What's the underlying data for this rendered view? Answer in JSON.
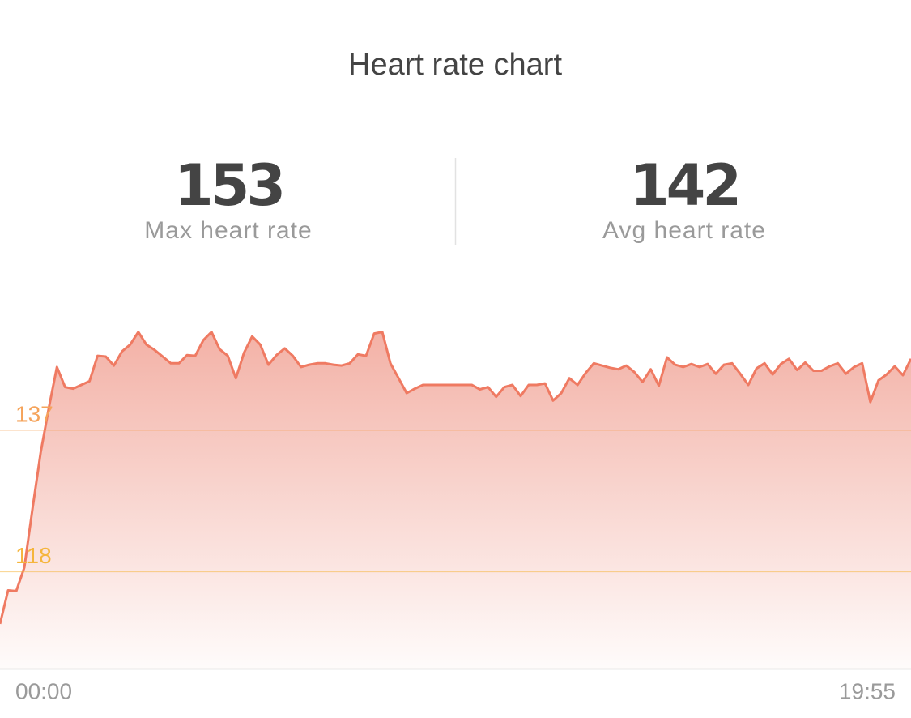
{
  "title": "Heart rate chart",
  "stats": [
    {
      "value": 153,
      "label": "Max heart rate"
    },
    {
      "value": 142,
      "label": "Avg heart rate"
    }
  ],
  "chart_data": {
    "type": "area",
    "color": "#ef7a62",
    "ylim": [
      105,
      153
    ],
    "yticks": [
      118,
      137
    ],
    "ytick_colors": [
      "#f5b53c",
      "#f5a35a"
    ],
    "xlabels": [
      "00:00",
      "19:55"
    ],
    "values": [
      111,
      115.5,
      115.4,
      118.6,
      126.5,
      134,
      140,
      145.5,
      142.8,
      142.6,
      143.1,
      143.6,
      147,
      146.9,
      145.7,
      147.6,
      148.5,
      150.2,
      148.5,
      147.8,
      146.9,
      146,
      146,
      147.1,
      147,
      149.1,
      150.2,
      147.9,
      147,
      144,
      147.4,
      149.6,
      148.5,
      145.8,
      147.1,
      148,
      147,
      145.5,
      145.8,
      146,
      146,
      145.8,
      145.7,
      146,
      147.2,
      147,
      150,
      150.2,
      146,
      144,
      142,
      142.6,
      143.1,
      143.1,
      143.1,
      143.1,
      143.1,
      143.1,
      143.1,
      142.5,
      142.8,
      141.5,
      142.8,
      143.1,
      141.6,
      143.1,
      143.1,
      143.3,
      141,
      142,
      144,
      143.1,
      144.7,
      146,
      145.7,
      145.4,
      145.2,
      145.7,
      144.8,
      143.5,
      145.2,
      143,
      146.8,
      145.8,
      145.5,
      145.9,
      145.5,
      145.9,
      144.6,
      145.8,
      146,
      144.6,
      143.1,
      145.3,
      146,
      144.5,
      145.9,
      146.6,
      145.1,
      146.1,
      145,
      145,
      145.6,
      146,
      144.6,
      145.5,
      146,
      140.8,
      143.7,
      144.5,
      145.6,
      144.4,
      146.6
    ]
  }
}
